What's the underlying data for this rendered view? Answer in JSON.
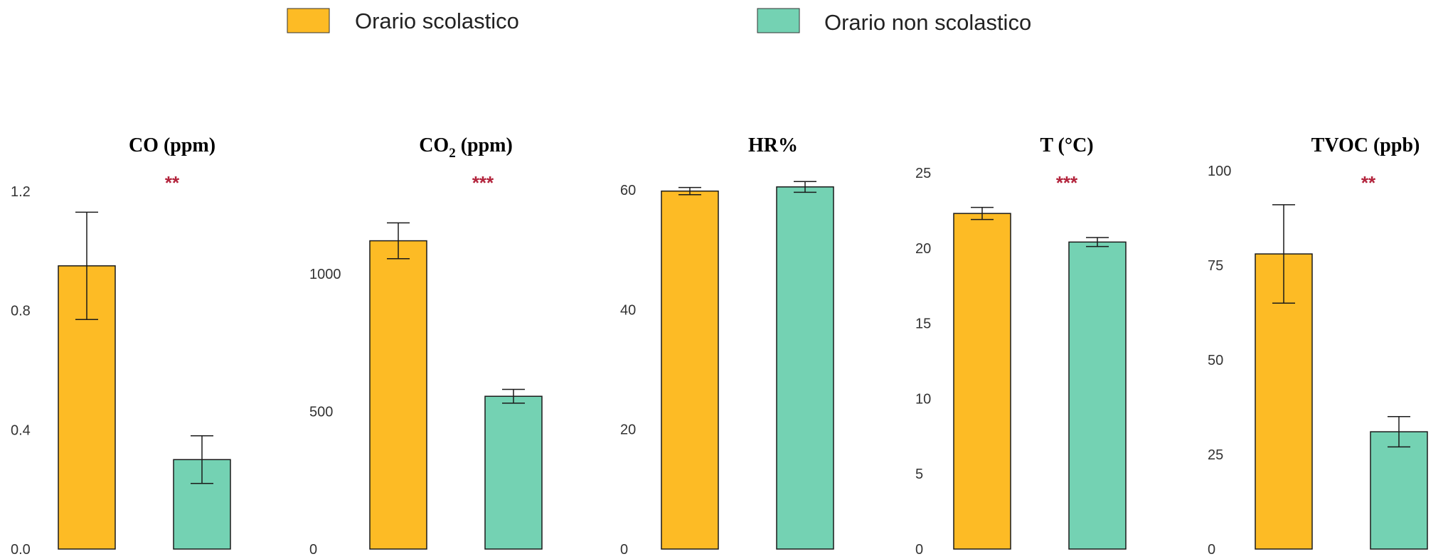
{
  "legend": [
    {
      "label": "Orario scolastico",
      "color": "#FDBB25"
    },
    {
      "label": "Orario non scolastico",
      "color": "#74D2B3"
    }
  ],
  "chart_data": [
    {
      "type": "bar",
      "title": "CO (ppm)",
      "significance": "**",
      "categories": [
        "Orario scolastico",
        "Orario non scolastico"
      ],
      "values": [
        0.95,
        0.3
      ],
      "error": [
        0.18,
        0.08
      ],
      "ylim": [
        0,
        1.2
      ],
      "yticks": [
        "0.0",
        "0.4",
        "0.8",
        "1.2"
      ]
    },
    {
      "type": "bar",
      "title": "CO",
      "title_sub": "2",
      "title_unit": " (ppm)",
      "significance": "***",
      "categories": [
        "Orario scolastico",
        "Orario non scolastico"
      ],
      "values": [
        1120,
        555
      ],
      "error": [
        65,
        25
      ],
      "ylim": [
        0,
        1000
      ],
      "yticks": [
        "0",
        "500",
        "1000"
      ]
    },
    {
      "type": "bar",
      "title": "HR%",
      "significance": "",
      "categories": [
        "Orario scolastico",
        "Orario non scolastico"
      ],
      "values": [
        59.8,
        60.5
      ],
      "error": [
        0.6,
        0.9
      ],
      "ylim": [
        0,
        60
      ],
      "yticks": [
        "0",
        "20",
        "40",
        "60"
      ]
    },
    {
      "type": "bar",
      "title": "T (°C)",
      "significance": "***",
      "categories": [
        "Orario scolastico",
        "Orario non scolastico"
      ],
      "values": [
        22.3,
        20.4
      ],
      "error": [
        0.4,
        0.3
      ],
      "ylim": [
        0,
        25
      ],
      "yticks": [
        "0",
        "5",
        "10",
        "15",
        "20",
        "25"
      ]
    },
    {
      "type": "bar",
      "title": "TVOC (ppb)",
      "significance": "**",
      "categories": [
        "Orario scolastico",
        "Orario non scolastico"
      ],
      "values": [
        78,
        31
      ],
      "error": [
        13,
        4
      ],
      "ylim": [
        0,
        100
      ],
      "yticks": [
        "0",
        "25",
        "50",
        "75",
        "100"
      ]
    }
  ]
}
